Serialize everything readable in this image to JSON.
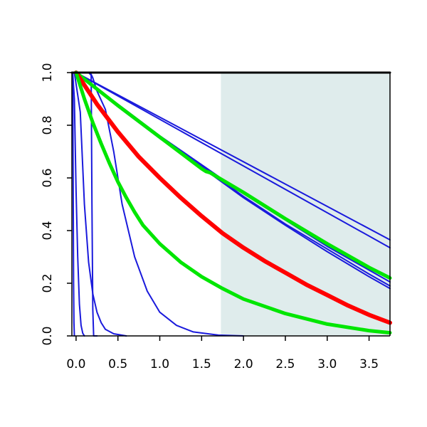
{
  "chart_data": {
    "type": "line",
    "title": "",
    "xlabel": "",
    "ylabel": "",
    "xlim": [
      -0.05,
      3.75
    ],
    "ylim": [
      0,
      1
    ],
    "x_ticks": [
      "0.0",
      "0.5",
      "1.0",
      "1.5",
      "2.0",
      "2.5",
      "3.0",
      "3.5"
    ],
    "y_ticks": [
      "0.0",
      "0.2",
      "0.4",
      "0.6",
      "0.8",
      "1.0"
    ],
    "shaded_region": {
      "x_start": 1.73,
      "x_end": 3.75,
      "color": "#dfecec"
    },
    "colors": {
      "blue": "#1a1adc",
      "red": "#ff0000",
      "green": "#00e600",
      "black": "#000000"
    },
    "grid": false,
    "legend": "none",
    "series": [
      {
        "color": "blue",
        "width": 2,
        "points": [
          [
            -0.04,
            1
          ],
          [
            -0.035,
            0.6
          ],
          [
            -0.03,
            0.2
          ],
          [
            -0.025,
            0.05
          ],
          [
            -0.02,
            0
          ]
        ]
      },
      {
        "color": "blue",
        "width": 2,
        "points": [
          [
            -0.04,
            1
          ],
          [
            -0.02,
            0.9
          ],
          [
            0,
            0.55
          ],
          [
            0.02,
            0.3
          ],
          [
            0.04,
            0.12
          ],
          [
            0.06,
            0.04
          ],
          [
            0.08,
            0.01
          ],
          [
            0.1,
            0
          ]
        ]
      },
      {
        "color": "blue",
        "width": 2,
        "points": [
          [
            -0.02,
            1
          ],
          [
            0.05,
            0.85
          ],
          [
            0.1,
            0.5
          ],
          [
            0.15,
            0.28
          ],
          [
            0.2,
            0.16
          ],
          [
            0.25,
            0.09
          ],
          [
            0.3,
            0.05
          ],
          [
            0.35,
            0.025
          ],
          [
            0.45,
            0.008
          ],
          [
            0.6,
            0
          ]
        ]
      },
      {
        "color": "blue",
        "width": 2,
        "points": [
          [
            -0.02,
            1
          ],
          [
            0.15,
            1
          ],
          [
            0.18,
            0.99
          ],
          [
            0.19,
            0.5
          ],
          [
            0.2,
            0.1
          ],
          [
            0.21,
            0
          ],
          [
            0.25,
            0
          ]
        ]
      },
      {
        "color": "blue",
        "width": 2,
        "points": [
          [
            -0.02,
            1
          ],
          [
            0.17,
            1
          ],
          [
            0.2,
            0.98
          ],
          [
            0.25,
            0.93
          ],
          [
            0.35,
            0.86
          ],
          [
            0.45,
            0.7
          ],
          [
            0.55,
            0.5
          ],
          [
            0.7,
            0.3
          ],
          [
            0.85,
            0.17
          ],
          [
            1.0,
            0.09
          ],
          [
            1.2,
            0.04
          ],
          [
            1.4,
            0.015
          ],
          [
            1.7,
            0.003
          ],
          [
            2.0,
            0
          ]
        ]
      },
      {
        "color": "blue",
        "width": 2,
        "points": [
          [
            0,
            1
          ],
          [
            3.75,
            0.365
          ]
        ]
      },
      {
        "color": "blue",
        "width": 2,
        "points": [
          [
            0,
            1
          ],
          [
            3.75,
            0.335
          ]
        ]
      },
      {
        "color": "blue",
        "width": 2,
        "points": [
          [
            0,
            1
          ],
          [
            0.5,
            0.88
          ],
          [
            1.0,
            0.76
          ],
          [
            1.5,
            0.65
          ],
          [
            2.0,
            0.54
          ],
          [
            2.5,
            0.44
          ],
          [
            3.0,
            0.34
          ],
          [
            3.5,
            0.25
          ],
          [
            3.75,
            0.205
          ]
        ]
      },
      {
        "color": "blue",
        "width": 2,
        "points": [
          [
            0,
            1
          ],
          [
            0.5,
            0.875
          ],
          [
            1.0,
            0.755
          ],
          [
            1.5,
            0.645
          ],
          [
            2.0,
            0.53
          ],
          [
            2.5,
            0.425
          ],
          [
            3.0,
            0.33
          ],
          [
            3.5,
            0.235
          ],
          [
            3.75,
            0.19
          ]
        ]
      },
      {
        "color": "blue",
        "width": 2,
        "points": [
          [
            0,
            1
          ],
          [
            0.5,
            0.87
          ],
          [
            1.0,
            0.75
          ],
          [
            1.5,
            0.64
          ],
          [
            2.0,
            0.525
          ],
          [
            2.5,
            0.42
          ],
          [
            3.0,
            0.32
          ],
          [
            3.5,
            0.225
          ],
          [
            3.75,
            0.18
          ]
        ]
      },
      {
        "color": "green",
        "width": 5,
        "points": [
          [
            0,
            1
          ],
          [
            0.5,
            0.875
          ],
          [
            1.0,
            0.755
          ],
          [
            1.5,
            0.635
          ],
          [
            1.55,
            0.625
          ],
          [
            1.6,
            0.62
          ],
          [
            2.0,
            0.545
          ],
          [
            2.5,
            0.445
          ],
          [
            3.0,
            0.35
          ],
          [
            3.5,
            0.26
          ],
          [
            3.75,
            0.22
          ]
        ]
      },
      {
        "color": "red",
        "width": 6,
        "points": [
          [
            0,
            1
          ],
          [
            0.25,
            0.88
          ],
          [
            0.5,
            0.775
          ],
          [
            0.75,
            0.68
          ],
          [
            1.0,
            0.6
          ],
          [
            1.25,
            0.525
          ],
          [
            1.5,
            0.455
          ],
          [
            1.75,
            0.39
          ],
          [
            2.0,
            0.335
          ],
          [
            2.25,
            0.285
          ],
          [
            2.5,
            0.24
          ],
          [
            2.75,
            0.195
          ],
          [
            3.0,
            0.155
          ],
          [
            3.25,
            0.115
          ],
          [
            3.5,
            0.08
          ],
          [
            3.75,
            0.05
          ]
        ]
      },
      {
        "color": "green",
        "width": 5,
        "points": [
          [
            0,
            1
          ],
          [
            0.1,
            0.9
          ],
          [
            0.2,
            0.81
          ],
          [
            0.3,
            0.73
          ],
          [
            0.4,
            0.655
          ],
          [
            0.5,
            0.585
          ],
          [
            0.6,
            0.525
          ],
          [
            0.7,
            0.47
          ],
          [
            0.8,
            0.42
          ],
          [
            1.0,
            0.35
          ],
          [
            1.25,
            0.28
          ],
          [
            1.5,
            0.225
          ],
          [
            1.75,
            0.18
          ],
          [
            2.0,
            0.14
          ],
          [
            2.5,
            0.085
          ],
          [
            3.0,
            0.045
          ],
          [
            3.5,
            0.02
          ],
          [
            3.75,
            0.012
          ]
        ]
      },
      {
        "color": "black",
        "width": 3,
        "points": [
          [
            -0.05,
            1
          ],
          [
            3.75,
            1
          ]
        ]
      }
    ]
  }
}
